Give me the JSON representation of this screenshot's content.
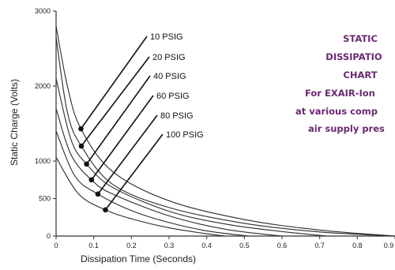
{
  "chart_data": {
    "type": "line",
    "title_lines": [
      "STATIC",
      "DISSIPATIO",
      "CHART",
      "For EXAIR-Ion",
      "at various comp",
      "air supply pres"
    ],
    "xlabel": "Dissipation Time (Seconds)",
    "ylabel": "Static Charge (Volts)",
    "xlim": [
      0,
      0.9
    ],
    "ylim": [
      0,
      3000
    ],
    "x_ticks": [
      0,
      0.1,
      0.2,
      0.3,
      0.4,
      0.5,
      0.6,
      0.7,
      0.8,
      0.9
    ],
    "x_tick_labels": [
      "0",
      "0.1",
      "0.2",
      "0.3",
      "0.4",
      "0.5",
      "0.6",
      "0.7",
      "0.8",
      "0.9"
    ],
    "y_ticks": [
      0,
      500,
      1000,
      2000,
      3000
    ],
    "y_tick_labels": [
      "0",
      "500",
      "1000",
      "2000",
      "3000"
    ],
    "grid": false,
    "legend": "leader-line labels",
    "series": [
      {
        "name": "10 PSIG",
        "x": [
          0,
          0.03,
          0.066,
          0.15,
          0.3,
          0.5,
          0.7,
          0.9
        ],
        "y": [
          2800,
          2000,
          1430,
          860,
          470,
          220,
          80,
          0
        ],
        "marker": [
          0.066,
          1430
        ]
      },
      {
        "name": "20 PSIG",
        "x": [
          0,
          0.03,
          0.067,
          0.15,
          0.3,
          0.5,
          0.7,
          0.9
        ],
        "y": [
          2650,
          1650,
          1200,
          690,
          380,
          170,
          55,
          0
        ],
        "marker": [
          0.067,
          1200
        ]
      },
      {
        "name": "40 PSIG",
        "x": [
          0,
          0.04,
          0.081,
          0.15,
          0.3,
          0.45,
          0.6,
          0.72
        ],
        "y": [
          2100,
          1280,
          960,
          650,
          330,
          160,
          60,
          0
        ],
        "marker": [
          0.081,
          960
        ]
      },
      {
        "name": "60 PSIG",
        "x": [
          0,
          0.04,
          0.094,
          0.15,
          0.3,
          0.45,
          0.6
        ],
        "y": [
          1700,
          1080,
          750,
          560,
          270,
          90,
          0
        ],
        "marker": [
          0.094,
          750
        ]
      },
      {
        "name": "80 PSIG",
        "x": [
          0,
          0.05,
          0.111,
          0.2,
          0.3,
          0.4,
          0.51
        ],
        "y": [
          1400,
          800,
          560,
          340,
          180,
          70,
          0
        ],
        "marker": [
          0.111,
          560
        ]
      },
      {
        "name": "100 PSIG",
        "x": [
          0,
          0.06,
          0.131,
          0.2,
          0.3,
          0.4,
          0.45
        ],
        "y": [
          1050,
          560,
          350,
          230,
          110,
          30,
          0
        ],
        "marker": [
          0.131,
          350
        ]
      }
    ],
    "colors": {
      "curve": "#2b2b2b",
      "marker": "#111111",
      "side_text": "#6a2a72"
    }
  }
}
